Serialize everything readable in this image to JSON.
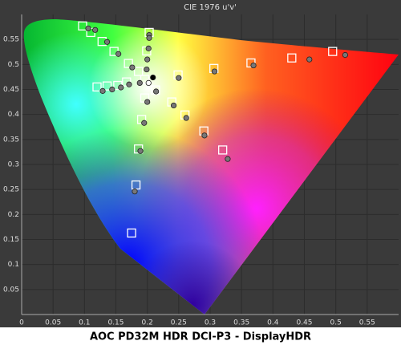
{
  "chart_data": {
    "type": "scatter",
    "title": "CIE 1976 u'v'",
    "caption": "AOC PD32M HDR DCI-P3 - DisplayHDR",
    "xlim": [
      0,
      0.6
    ],
    "ylim": [
      0,
      0.6
    ],
    "xticks": [
      0,
      0.05,
      0.1,
      0.15,
      0.2,
      0.25,
      0.3,
      0.35,
      0.4,
      0.45,
      0.5,
      0.55
    ],
    "yticks": [
      0.05,
      0.1,
      0.15,
      0.2,
      0.25,
      0.3,
      0.35,
      0.4,
      0.45,
      0.5,
      0.55
    ],
    "grid": true,
    "series": [
      {
        "marker": "square",
        "color": "#ffffff",
        "x": [
          0.097,
          0.11,
          0.128,
          0.147,
          0.17,
          0.186,
          0.196,
          0.203,
          0.199,
          0.249,
          0.306,
          0.365,
          0.43,
          0.495,
          0.12,
          0.136,
          0.153,
          0.167,
          0.196,
          0.191,
          0.186,
          0.182,
          0.175,
          0.213,
          0.239,
          0.26,
          0.29,
          0.32
        ],
        "values": [
          0.577,
          0.564,
          0.546,
          0.526,
          0.502,
          0.486,
          0.47,
          0.564,
          0.527,
          0.479,
          0.492,
          0.503,
          0.513,
          0.526,
          0.455,
          0.457,
          0.458,
          0.465,
          0.433,
          0.39,
          0.331,
          0.259,
          0.163,
          0.449,
          0.425,
          0.399,
          0.367,
          0.329
        ]
      },
      {
        "marker": "circle",
        "color": "#777777",
        "x": [
          0.106,
          0.117,
          0.136,
          0.154,
          0.176,
          0.203,
          0.203,
          0.202,
          0.2,
          0.199,
          0.188,
          0.214,
          0.25,
          0.307,
          0.369,
          0.458,
          0.515,
          0.129,
          0.144,
          0.158,
          0.171,
          0.2,
          0.195,
          0.189,
          0.18,
          0.242,
          0.262,
          0.291,
          0.328
        ],
        "values": [
          0.572,
          0.569,
          0.545,
          0.521,
          0.494,
          0.559,
          0.553,
          0.532,
          0.51,
          0.49,
          0.463,
          0.446,
          0.473,
          0.486,
          0.498,
          0.51,
          0.519,
          0.447,
          0.45,
          0.454,
          0.46,
          0.425,
          0.383,
          0.327,
          0.246,
          0.418,
          0.393,
          0.358,
          0.311
        ]
      },
      {
        "marker": "circle",
        "color": "#000000",
        "x": [
          0.209
        ],
        "values": [
          0.474
        ]
      },
      {
        "marker": "circle",
        "color": "#ffffff",
        "x": [
          0.202
        ],
        "values": [
          0.463
        ]
      }
    ]
  }
}
